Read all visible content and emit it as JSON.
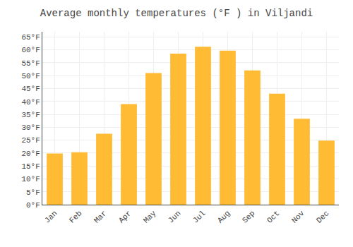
{
  "chart_data": {
    "type": "bar",
    "title": "Average monthly temperatures (°F ) in Viljandi",
    "categories": [
      "Jan",
      "Feb",
      "Mar",
      "Apr",
      "May",
      "Jun",
      "Jul",
      "Aug",
      "Sep",
      "Oct",
      "Nov",
      "Dec"
    ],
    "values": [
      19.8,
      20.3,
      27.5,
      39.0,
      51.0,
      58.5,
      61.2,
      59.7,
      52.0,
      43.0,
      33.3,
      24.8
    ],
    "color": "#FFBB33",
    "ylim": [
      0,
      67
    ],
    "yticks": [
      {
        "value": 0,
        "label": "0°F"
      },
      {
        "value": 5,
        "label": "5°F"
      },
      {
        "value": 10,
        "label": "10°F"
      },
      {
        "value": 15,
        "label": "15°F"
      },
      {
        "value": 20,
        "label": "20°F"
      },
      {
        "value": 25,
        "label": "25°F"
      },
      {
        "value": 30,
        "label": "30°F"
      },
      {
        "value": 35,
        "label": "35°F"
      },
      {
        "value": 40,
        "label": "40°F"
      },
      {
        "value": 45,
        "label": "45°F"
      },
      {
        "value": 50,
        "label": "50°F"
      },
      {
        "value": 55,
        "label": "55°F"
      },
      {
        "value": 60,
        "label": "60°F"
      },
      {
        "value": 65,
        "label": "65°F"
      }
    ],
    "grid": true
  }
}
